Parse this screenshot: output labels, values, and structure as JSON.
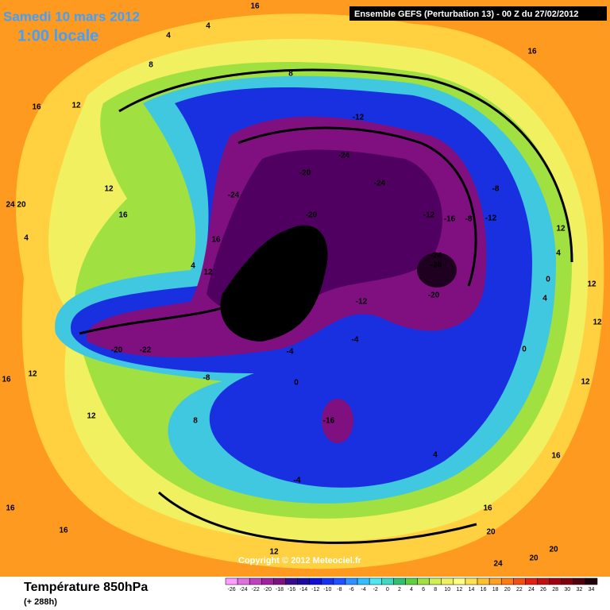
{
  "header": {
    "title": "Samedi 10 mars 2012",
    "time": "1:00 locale",
    "model": "Ensemble GEFS (Perturbation 13)  -  00 Z du 27/02/2012"
  },
  "footer": {
    "variable": "Température 850hPa",
    "lead": "(+ 288h)",
    "copyright": "Copyright © 2012 Meteociel.fr"
  },
  "colorbar": {
    "ticks": [
      -26,
      -24,
      -22,
      -20,
      -18,
      -16,
      -14,
      -12,
      -10,
      -8,
      -6,
      -4,
      -2,
      0,
      2,
      4,
      6,
      8,
      10,
      12,
      14,
      16,
      18,
      20,
      22,
      24,
      26,
      28,
      30,
      32,
      34
    ],
    "colors": [
      "#ff9cff",
      "#e070e0",
      "#c040c0",
      "#a020a0",
      "#801080",
      "#3a0a8a",
      "#1a0aa0",
      "#1010d0",
      "#1830f0",
      "#2050ff",
      "#3090ff",
      "#30c0ff",
      "#50e8f0",
      "#40d8c0",
      "#30c070",
      "#60d040",
      "#a0e040",
      "#d0f050",
      "#f0f060",
      "#ffff80",
      "#ffe050",
      "#ffc030",
      "#ffa020",
      "#ff7a10",
      "#f05010",
      "#e02010",
      "#c01010",
      "#a00010",
      "#800010",
      "#500010",
      "#200008"
    ]
  },
  "contour_labels": [
    "4",
    "4",
    "8",
    "8",
    "16",
    "12",
    "16",
    "-12",
    "-24",
    "-20",
    "-24",
    "-24",
    "12",
    "16",
    "24 20",
    "-20",
    "-12",
    "-16",
    "-8",
    "-12",
    "-8",
    "4",
    "16",
    "-24",
    "-24",
    "-28",
    "12",
    "4",
    "-28",
    "-12",
    "-20",
    "-20",
    "-22",
    "-4",
    "-4",
    "-8",
    "12",
    "16",
    "0",
    "12",
    "8",
    "-16",
    "4",
    "-4",
    "16",
    "16",
    "16",
    "16",
    "20",
    "20",
    "20",
    "24",
    "12",
    "12",
    "12",
    "12",
    "12",
    "4",
    "4",
    "0",
    "0",
    "16"
  ]
}
